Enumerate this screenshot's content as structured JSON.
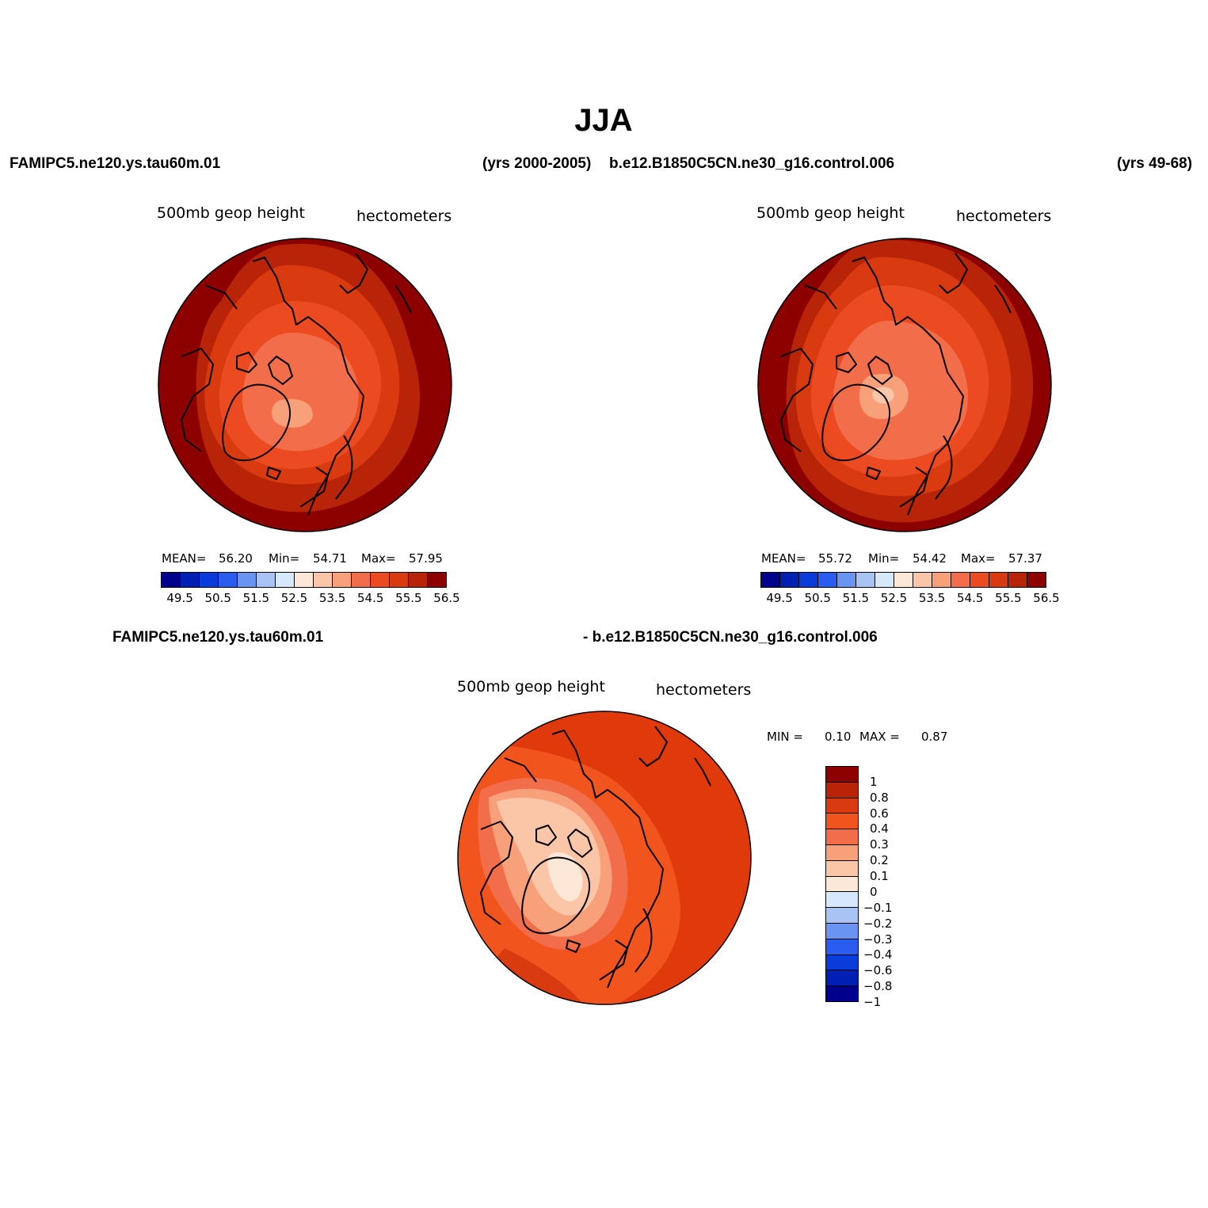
{
  "title": "JJA",
  "top_left": {
    "case_label": "FAMIPC5.ne120.ys.tau60m.01",
    "years_label": "(yrs 2000-2005)",
    "variable": "500mb  geop  height",
    "units": "hectometers",
    "stats": {
      "mean_label": "MEAN=",
      "mean": "56.20",
      "min_label": "Min=",
      "min": "54.71",
      "max_label": "Max=",
      "max": "57.95"
    }
  },
  "top_right": {
    "case_label": "b.e12.B1850C5CN.ne30_g16.control.006",
    "years_label": "(yrs 49-68)",
    "variable": "500mb  geop  height",
    "units": "hectometers",
    "stats": {
      "mean_label": "MEAN=",
      "mean": "55.72",
      "min_label": "Min=",
      "min": "54.42",
      "max_label": "Max=",
      "max": "57.37"
    }
  },
  "bottom": {
    "case_label_left": "FAMIPC5.ne120.ys.tau60m.01",
    "case_label_right": "- b.e12.B1850C5CN.ne30_g16.control.006",
    "variable": "500mb  geop  height",
    "units": "hectometers",
    "stats": {
      "min_label": "MIN =",
      "min": "0.10",
      "max_label": "MAX =",
      "max": "0.87"
    }
  },
  "colorbar_top": {
    "colors": [
      "#00008c",
      "#0020b4",
      "#0a3cdc",
      "#2a5cf0",
      "#6a94f2",
      "#a8c4f5",
      "#d6e8fb",
      "#fde7d6",
      "#fbc6a8",
      "#f7a07a",
      "#f26e4a",
      "#ec4a20",
      "#d93a10",
      "#b82408",
      "#8c0000"
    ],
    "tick_labels": [
      "49.5",
      "50.5",
      "51.5",
      "52.5",
      "53.5",
      "54.5",
      "55.5",
      "56.5"
    ]
  },
  "colorbar_diff": {
    "colors_top_to_bottom": [
      "#8c0000",
      "#b82408",
      "#d93a10",
      "#f2541e",
      "#f26e4a",
      "#f7a07a",
      "#fbc6a8",
      "#fde7d6",
      "#d6e8fb",
      "#a8c4f5",
      "#6a94f2",
      "#2a5cf0",
      "#0a3cdc",
      "#0020b4",
      "#00008c"
    ],
    "tick_labels_top_to_bottom": [
      "1",
      "0.8",
      "0.6",
      "0.4",
      "0.3",
      "0.2",
      "0.1",
      "0",
      "−0.1",
      "−0.2",
      "−0.3",
      "−0.4",
      "−0.6",
      "−0.8",
      "−1"
    ]
  }
}
